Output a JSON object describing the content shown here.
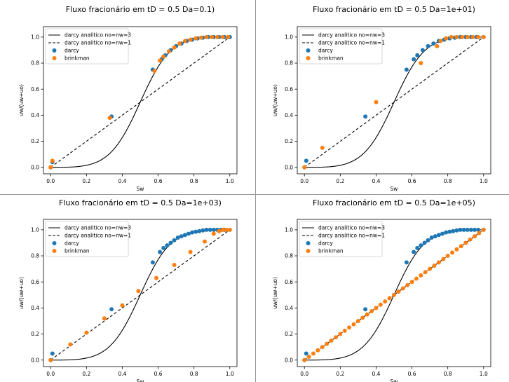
{
  "chart_data": [
    {
      "type": "scatter",
      "title": "Fluxo fracionário em tD = 0.5 Da=0.1)",
      "xlabel": "Sw",
      "ylabel": "uw/(uw+uo)",
      "xlim": [
        -0.04,
        1.04
      ],
      "ylim": [
        -0.05,
        1.08
      ],
      "xticks": [
        "0.0",
        "0.2",
        "0.4",
        "0.6",
        "0.8",
        "1.0"
      ],
      "yticks": [
        "0.0",
        "0.2",
        "0.4",
        "0.6",
        "0.8",
        "1.0"
      ],
      "legend_position": "upper-left",
      "series": [
        {
          "name": "darcy analitico no=nw=3",
          "kind": "line",
          "style": "solid",
          "color": "#000000",
          "function": "cubic"
        },
        {
          "name": "darcy analitico no=nw=1",
          "kind": "line",
          "style": "dashed",
          "color": "#000000",
          "function": "linear"
        },
        {
          "name": "darcy",
          "kind": "points",
          "color": "#1f77b4",
          "x": [
            0.0,
            0.01,
            0.34,
            0.57,
            0.62,
            0.64,
            0.67,
            0.7,
            0.73,
            0.76,
            0.79,
            0.82,
            0.85,
            0.88,
            0.91,
            0.94,
            0.97,
            1.0
          ],
          "y": [
            0.0,
            0.04,
            0.39,
            0.75,
            0.83,
            0.86,
            0.9,
            0.93,
            0.95,
            0.97,
            0.98,
            0.99,
            0.995,
            1.0,
            1.0,
            1.0,
            1.0,
            1.0
          ]
        },
        {
          "name": "brinkman",
          "kind": "points",
          "color": "#ff7f0e",
          "x": [
            0.0,
            0.01,
            0.33,
            0.58,
            0.61,
            0.63,
            0.66,
            0.69,
            0.72,
            0.75,
            0.78,
            0.81,
            0.84,
            0.87,
            0.9,
            0.93,
            0.96,
            0.99
          ],
          "y": [
            0.0,
            0.05,
            0.38,
            0.74,
            0.82,
            0.85,
            0.89,
            0.92,
            0.95,
            0.97,
            0.98,
            0.99,
            0.995,
            1.0,
            1.0,
            1.0,
            1.0,
            1.0
          ]
        }
      ]
    },
    {
      "type": "scatter",
      "title": "Fluxo fracionário em tD = 0.5 Da=1e+01)",
      "xlabel": "Sw",
      "ylabel": "uw/(uw+uo)",
      "xlim": [
        -0.04,
        1.04
      ],
      "ylim": [
        -0.05,
        1.08
      ],
      "xticks": [
        "0.0",
        "0.2",
        "0.4",
        "0.6",
        "0.8",
        "1.0"
      ],
      "yticks": [
        "0.0",
        "0.2",
        "0.4",
        "0.6",
        "0.8",
        "1.0"
      ],
      "legend_position": "upper-left",
      "series": [
        {
          "name": "darcy analitico no=nw=3",
          "kind": "line",
          "style": "solid",
          "color": "#000000",
          "function": "cubic"
        },
        {
          "name": "darcy analitico no=nw=1",
          "kind": "line",
          "style": "dashed",
          "color": "#000000",
          "function": "linear"
        },
        {
          "name": "darcy",
          "kind": "points",
          "color": "#1f77b4",
          "x": [
            0.0,
            0.01,
            0.34,
            0.57,
            0.61,
            0.63,
            0.66,
            0.69,
            0.72,
            0.75,
            0.78,
            0.81,
            0.84,
            0.87,
            0.9,
            0.93,
            0.96,
            1.0
          ],
          "y": [
            0.0,
            0.05,
            0.39,
            0.75,
            0.83,
            0.86,
            0.9,
            0.93,
            0.95,
            0.97,
            0.98,
            0.99,
            0.995,
            1.0,
            1.0,
            1.0,
            1.0,
            1.0
          ]
        },
        {
          "name": "brinkman",
          "kind": "points",
          "color": "#ff7f0e",
          "x": [
            0.0,
            0.1,
            0.4,
            0.65,
            0.74,
            0.76,
            0.79,
            0.82,
            0.85,
            0.88,
            0.91,
            0.94,
            0.97,
            1.0
          ],
          "y": [
            0.0,
            0.15,
            0.5,
            0.8,
            0.93,
            0.97,
            0.99,
            1.0,
            1.0,
            1.0,
            1.0,
            1.0,
            1.0,
            1.0
          ]
        }
      ]
    },
    {
      "type": "scatter",
      "title": "Fluxo fracionário em tD = 0.5 Da=1e+03)",
      "xlabel": "Sw",
      "ylabel": "uw/(uw+uo)",
      "xlim": [
        -0.04,
        1.04
      ],
      "ylim": [
        -0.05,
        1.08
      ],
      "xticks": [
        "0.0",
        "0.2",
        "0.4",
        "0.6",
        "0.8",
        "1.0"
      ],
      "yticks": [
        "0.0",
        "0.2",
        "0.4",
        "0.6",
        "0.8",
        "1.0"
      ],
      "legend_position": "upper-left",
      "series": [
        {
          "name": "darcy analitico no=nw=3",
          "kind": "line",
          "style": "solid",
          "color": "#000000",
          "function": "cubic"
        },
        {
          "name": "darcy analitico no=nw=1",
          "kind": "line",
          "style": "dashed",
          "color": "#000000",
          "function": "linear"
        },
        {
          "name": "darcy",
          "kind": "points",
          "color": "#1f77b4",
          "x": [
            0.0,
            0.01,
            0.34,
            0.57,
            0.61,
            0.63,
            0.65,
            0.67,
            0.69,
            0.71,
            0.73,
            0.75,
            0.77,
            0.79,
            0.81,
            0.83,
            0.85,
            0.87,
            0.89,
            0.91,
            0.93,
            0.95,
            0.97,
            1.0
          ],
          "y": [
            0.0,
            0.05,
            0.39,
            0.75,
            0.83,
            0.86,
            0.88,
            0.9,
            0.92,
            0.94,
            0.95,
            0.96,
            0.97,
            0.98,
            0.985,
            0.99,
            0.995,
            1.0,
            1.0,
            1.0,
            1.0,
            1.0,
            1.0,
            1.0
          ]
        },
        {
          "name": "brinkman",
          "kind": "points",
          "color": "#ff7f0e",
          "x": [
            0.0,
            0.11,
            0.2,
            0.3,
            0.4,
            0.49,
            0.59,
            0.69,
            0.78,
            0.86,
            0.91,
            0.94,
            0.96,
            0.98,
            1.0
          ],
          "y": [
            0.0,
            0.12,
            0.21,
            0.32,
            0.42,
            0.53,
            0.63,
            0.73,
            0.83,
            0.91,
            0.97,
            0.99,
            1.0,
            1.0,
            1.0
          ]
        }
      ]
    },
    {
      "type": "scatter",
      "title": "Fluxo fracionário em tD = 0.5 Da=1e+05)",
      "xlabel": "Sw",
      "ylabel": "uw/(uw+uo)",
      "xlim": [
        -0.04,
        1.04
      ],
      "ylim": [
        -0.05,
        1.08
      ],
      "xticks": [
        "0.0",
        "0.2",
        "0.4",
        "0.6",
        "0.8",
        "1.0"
      ],
      "yticks": [
        "0.0",
        "0.2",
        "0.4",
        "0.6",
        "0.8",
        "1.0"
      ],
      "legend_position": "upper-left",
      "series": [
        {
          "name": "darcy analitico no=nw=3",
          "kind": "line",
          "style": "solid",
          "color": "#000000",
          "function": "cubic"
        },
        {
          "name": "darcy analitico no=nw=1",
          "kind": "line",
          "style": "dashed",
          "color": "#000000",
          "function": "linear"
        },
        {
          "name": "darcy",
          "kind": "points",
          "color": "#1f77b4",
          "x": [
            0.0,
            0.01,
            0.34,
            0.57,
            0.61,
            0.63,
            0.65,
            0.67,
            0.69,
            0.71,
            0.73,
            0.75,
            0.77,
            0.79,
            0.81,
            0.83,
            0.85,
            0.87,
            0.89,
            0.91,
            0.93,
            0.95,
            0.97,
            1.0
          ],
          "y": [
            0.0,
            0.05,
            0.39,
            0.75,
            0.83,
            0.86,
            0.88,
            0.9,
            0.92,
            0.94,
            0.95,
            0.96,
            0.97,
            0.98,
            0.985,
            0.99,
            0.995,
            1.0,
            1.0,
            1.0,
            1.0,
            1.0,
            1.0,
            1.0
          ]
        },
        {
          "name": "brinkman",
          "kind": "points",
          "color": "#ff7f0e",
          "x": [
            0.0,
            0.025,
            0.05,
            0.075,
            0.1,
            0.125,
            0.15,
            0.175,
            0.2,
            0.225,
            0.25,
            0.275,
            0.3,
            0.325,
            0.35,
            0.375,
            0.4,
            0.425,
            0.45,
            0.475,
            0.5,
            0.525,
            0.55,
            0.575,
            0.6,
            0.625,
            0.65,
            0.675,
            0.7,
            0.725,
            0.75,
            0.775,
            0.8,
            0.825,
            0.85,
            0.875,
            0.9,
            0.925,
            0.95,
            0.975,
            1.0
          ],
          "y": [
            0.0,
            0.025,
            0.05,
            0.075,
            0.1,
            0.125,
            0.15,
            0.175,
            0.2,
            0.225,
            0.25,
            0.275,
            0.3,
            0.325,
            0.35,
            0.375,
            0.4,
            0.425,
            0.45,
            0.475,
            0.5,
            0.525,
            0.55,
            0.575,
            0.6,
            0.625,
            0.65,
            0.675,
            0.7,
            0.725,
            0.75,
            0.775,
            0.8,
            0.825,
            0.85,
            0.875,
            0.9,
            0.925,
            0.95,
            0.975,
            1.0
          ]
        }
      ]
    }
  ]
}
